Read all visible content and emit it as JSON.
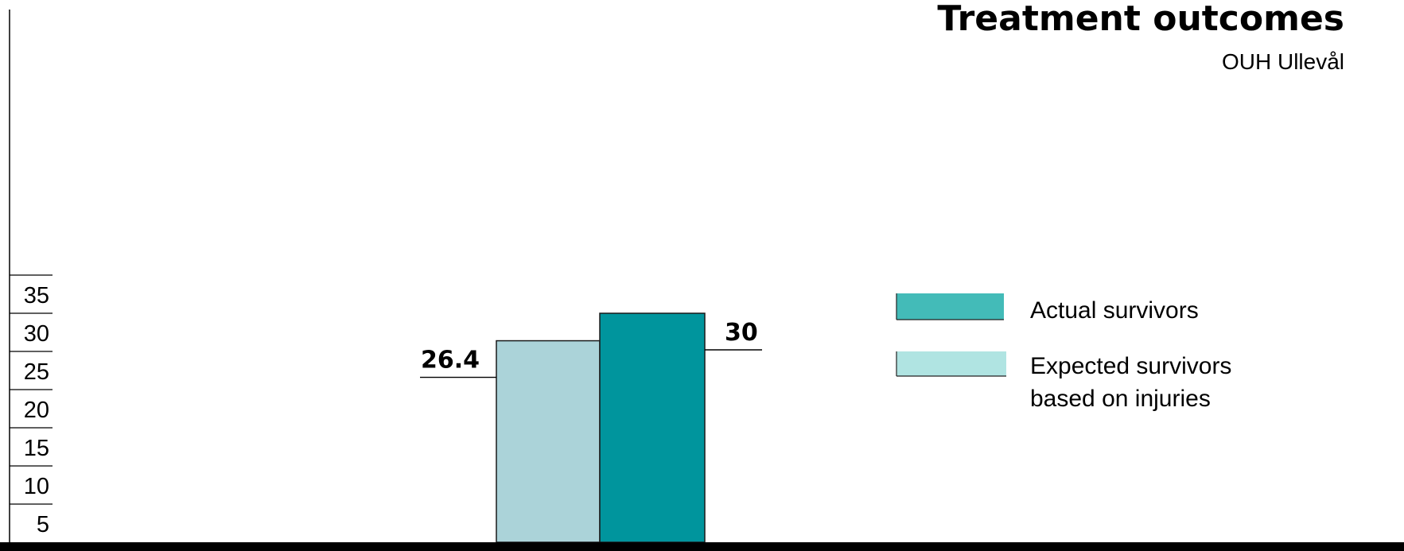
{
  "chart_data": {
    "type": "bar",
    "title": "Treatment outcomes",
    "subtitle": "OUH Ullevål",
    "y_ticks": [
      5,
      10,
      15,
      20,
      25,
      30,
      35
    ],
    "ylim": [
      0,
      35
    ],
    "grid": false,
    "legend_position": "right",
    "series": [
      {
        "name": "Expected survivors based on injuries",
        "legend_lines": [
          "Expected survivors",
          "based on injuries"
        ],
        "value": 26.4,
        "label": "26.4",
        "color": "#abd3d9",
        "legend_color": "#b0e4e2"
      },
      {
        "name": "Actual survivors",
        "legend_lines": [
          "Actual survivors"
        ],
        "value": 30,
        "label": "30",
        "color": "#00959d",
        "legend_color": "#43bbb8"
      }
    ],
    "legend_order": [
      1,
      0
    ]
  }
}
